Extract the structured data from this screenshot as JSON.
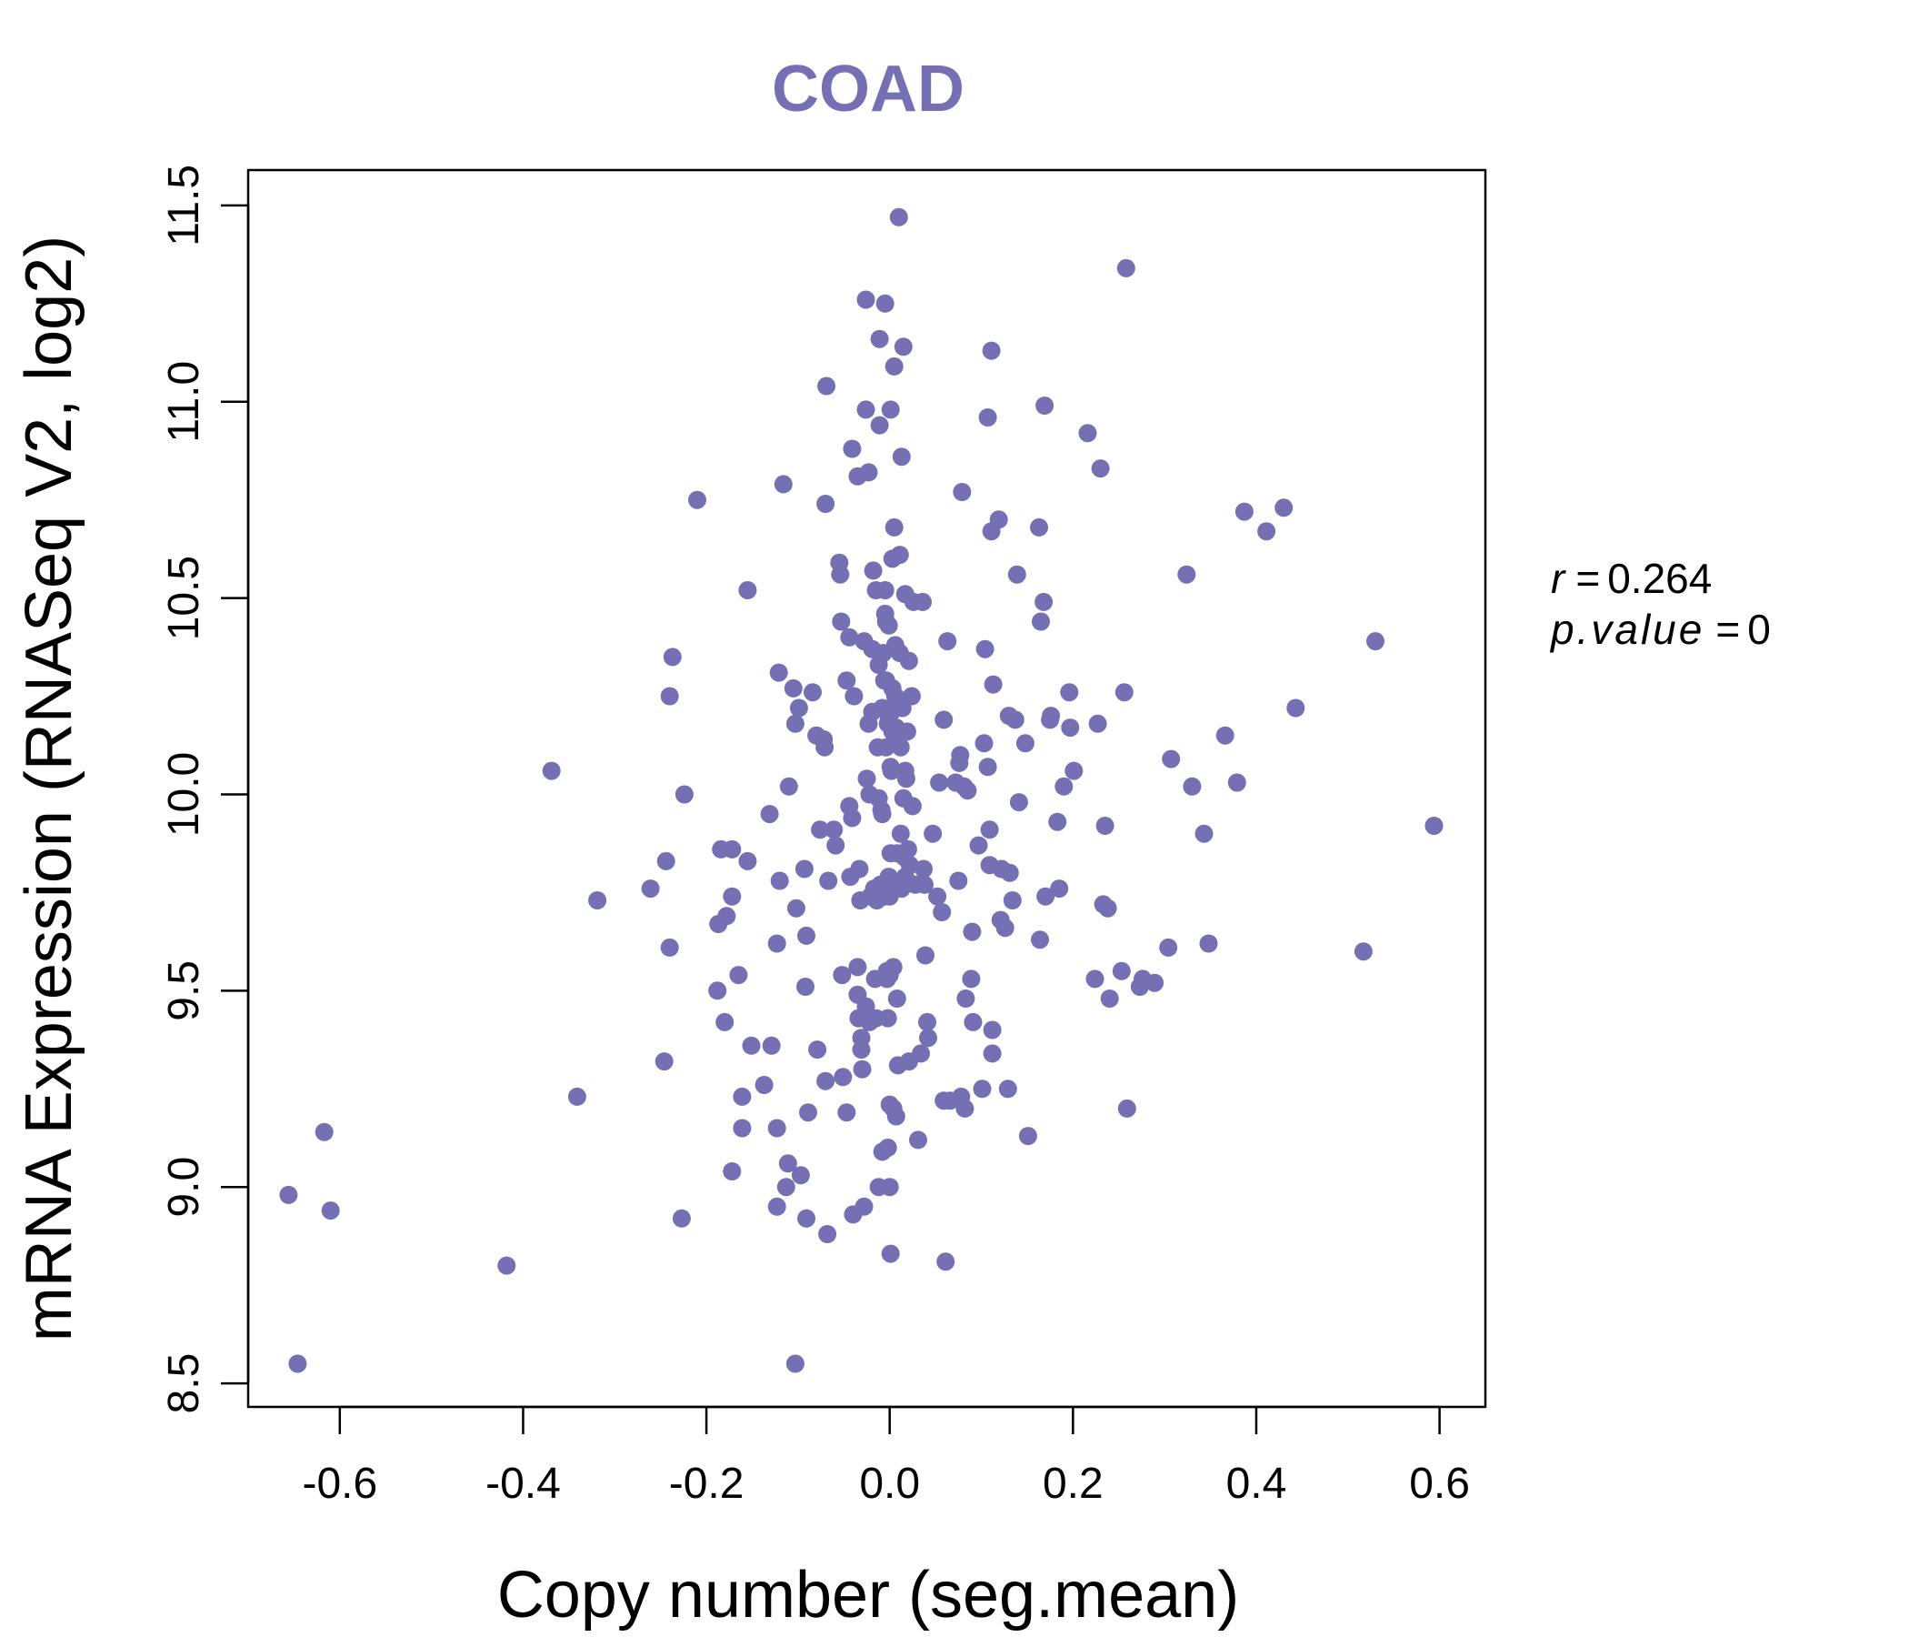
{
  "chart_data": {
    "type": "scatter",
    "title": "COAD",
    "xlabel": "Copy number (seg.mean)",
    "ylabel": "mRNA Expression (RNASeq V2, log2)",
    "xlim": [
      -0.7,
      0.65
    ],
    "ylim": [
      8.44,
      11.59
    ],
    "x_ticks": [
      -0.6,
      -0.4,
      -0.2,
      0.0,
      0.2,
      0.4,
      0.6
    ],
    "x_tick_labels": [
      "-0.6",
      "-0.4",
      "-0.2",
      "0.0",
      "0.2",
      "0.4",
      "0.6"
    ],
    "y_ticks": [
      8.5,
      9.0,
      9.5,
      10.0,
      10.5,
      11.0,
      11.5
    ],
    "y_tick_labels": [
      "8.5",
      "9.0",
      "9.5",
      "10.0",
      "10.5",
      "11.0",
      "11.5"
    ],
    "grid": false,
    "point_color": "#7570b3",
    "annotations": {
      "r_label": "r",
      "r_value": "0.264",
      "p_label": "p.value",
      "p_value": "0"
    },
    "points": [
      [
        -0.656,
        8.98
      ],
      [
        -0.646,
        8.55
      ],
      [
        -0.617,
        9.14
      ],
      [
        -0.61,
        8.94
      ],
      [
        -0.418,
        8.8
      ],
      [
        -0.369,
        10.06
      ],
      [
        -0.341,
        9.23
      ],
      [
        -0.319,
        9.73
      ],
      [
        -0.261,
        9.76
      ],
      [
        -0.244,
        9.83
      ],
      [
        -0.24,
        9.61
      ],
      [
        -0.24,
        10.25
      ],
      [
        -0.237,
        10.35
      ],
      [
        -0.246,
        9.32
      ],
      [
        -0.227,
        8.92
      ],
      [
        -0.224,
        10.0
      ],
      [
        -0.21,
        10.75
      ],
      [
        -0.188,
        9.5
      ],
      [
        -0.187,
        9.67
      ],
      [
        -0.184,
        9.86
      ],
      [
        -0.18,
        9.42
      ],
      [
        -0.178,
        9.69
      ],
      [
        -0.172,
        9.86
      ],
      [
        -0.172,
        9.74
      ],
      [
        -0.172,
        9.04
      ],
      [
        -0.165,
        9.54
      ],
      [
        -0.161,
        9.23
      ],
      [
        -0.161,
        9.15
      ],
      [
        -0.155,
        10.52
      ],
      [
        -0.155,
        9.83
      ],
      [
        -0.151,
        9.36
      ],
      [
        -0.137,
        9.26
      ],
      [
        -0.131,
        9.95
      ],
      [
        -0.129,
        9.36
      ],
      [
        -0.123,
        9.62
      ],
      [
        -0.123,
        9.15
      ],
      [
        -0.123,
        8.95
      ],
      [
        -0.121,
        10.31
      ],
      [
        -0.12,
        9.78
      ],
      [
        -0.116,
        10.79
      ],
      [
        -0.113,
        9.0
      ],
      [
        -0.111,
        9.06
      ],
      [
        -0.11,
        10.02
      ],
      [
        -0.105,
        10.27
      ],
      [
        -0.103,
        10.18
      ],
      [
        -0.102,
        9.71
      ],
      [
        -0.103,
        8.55
      ],
      [
        -0.099,
        10.22
      ],
      [
        -0.097,
        9.03
      ],
      [
        -0.093,
        9.81
      ],
      [
        -0.091,
        9.64
      ],
      [
        -0.092,
        9.51
      ],
      [
        -0.091,
        8.92
      ],
      [
        -0.089,
        9.19
      ],
      [
        -0.084,
        10.26
      ],
      [
        -0.08,
        10.15
      ],
      [
        -0.079,
        9.35
      ],
      [
        -0.076,
        9.91
      ],
      [
        -0.072,
        10.14
      ],
      [
        -0.071,
        10.12
      ],
      [
        -0.07,
        10.74
      ],
      [
        -0.07,
        9.27
      ],
      [
        -0.069,
        11.04
      ],
      [
        -0.068,
        8.88
      ],
      [
        -0.067,
        9.78
      ],
      [
        -0.061,
        9.91
      ],
      [
        -0.059,
        9.87
      ],
      [
        -0.055,
        10.59
      ],
      [
        -0.054,
        10.56
      ],
      [
        -0.053,
        10.44
      ],
      [
        -0.052,
        9.54
      ],
      [
        -0.051,
        9.28
      ],
      [
        -0.047,
        10.29
      ],
      [
        -0.047,
        9.19
      ],
      [
        -0.044,
        10.4
      ],
      [
        -0.044,
        9.97
      ],
      [
        -0.043,
        9.79
      ],
      [
        -0.041,
        10.88
      ],
      [
        -0.041,
        9.94
      ],
      [
        -0.04,
        8.93
      ],
      [
        -0.039,
        10.25
      ],
      [
        -0.035,
        10.81
      ],
      [
        -0.035,
        9.49
      ],
      [
        -0.035,
        9.56
      ],
      [
        -0.034,
        9.43
      ],
      [
        -0.033,
        9.81
      ],
      [
        -0.032,
        9.73
      ],
      [
        -0.031,
        9.38
      ],
      [
        -0.031,
        9.35
      ],
      [
        -0.03,
        9.3
      ],
      [
        -0.028,
        10.39
      ],
      [
        -0.028,
        8.95
      ],
      [
        -0.026,
        11.26
      ],
      [
        -0.026,
        10.98
      ],
      [
        -0.026,
        9.46
      ],
      [
        -0.025,
        10.04
      ],
      [
        -0.023,
        10.82
      ],
      [
        -0.023,
        10.18
      ],
      [
        -0.022,
        9.42
      ],
      [
        -0.022,
        10.0
      ],
      [
        -0.021,
        9.74
      ],
      [
        -0.019,
        10.37
      ],
      [
        -0.019,
        10.21
      ],
      [
        -0.018,
        10.57
      ],
      [
        -0.017,
        9.76
      ],
      [
        -0.016,
        9.53
      ],
      [
        -0.015,
        10.52
      ],
      [
        -0.015,
        9.43
      ],
      [
        -0.014,
        9.76
      ],
      [
        -0.014,
        9.73
      ],
      [
        -0.013,
        10.12
      ],
      [
        -0.012,
        10.33
      ],
      [
        -0.012,
        9.99
      ],
      [
        -0.012,
        9.0
      ],
      [
        -0.011,
        11.16
      ],
      [
        -0.011,
        10.94
      ],
      [
        -0.01,
        9.77
      ],
      [
        -0.009,
        9.96
      ],
      [
        -0.009,
        9.77
      ],
      [
        -0.008,
        10.22
      ],
      [
        -0.008,
        9.95
      ],
      [
        -0.008,
        9.09
      ],
      [
        -0.007,
        10.36
      ],
      [
        -0.006,
        10.29
      ],
      [
        -0.006,
        9.74
      ],
      [
        -0.005,
        11.25
      ],
      [
        -0.005,
        10.52
      ],
      [
        -0.005,
        10.46
      ],
      [
        -0.004,
        10.44
      ],
      [
        -0.004,
        10.29
      ],
      [
        -0.004,
        10.12
      ],
      [
        -0.004,
        9.76
      ],
      [
        -0.003,
        9.55
      ],
      [
        -0.003,
        9.53
      ],
      [
        -0.002,
        10.18
      ],
      [
        -0.002,
        9.43
      ],
      [
        -0.002,
        9.1
      ],
      [
        -0.001,
        10.43
      ],
      [
        -0.001,
        10.19
      ],
      [
        -0.001,
        9.79
      ],
      [
        0.0,
        9.74
      ],
      [
        0.0,
        9.54
      ],
      [
        0.0,
        9.21
      ],
      [
        0.0,
        9.0
      ],
      [
        0.001,
        10.98
      ],
      [
        0.001,
        10.07
      ],
      [
        0.001,
        9.85
      ],
      [
        0.001,
        8.83
      ],
      [
        0.002,
        10.21
      ],
      [
        0.002,
        10.06
      ],
      [
        0.003,
        10.6
      ],
      [
        0.003,
        10.27
      ],
      [
        0.003,
        10.16
      ],
      [
        0.003,
        9.77
      ],
      [
        0.004,
        9.56
      ],
      [
        0.004,
        9.2
      ],
      [
        0.005,
        11.09
      ],
      [
        0.005,
        10.68
      ],
      [
        0.006,
        10.38
      ],
      [
        0.006,
        10.25
      ],
      [
        0.006,
        10.23
      ],
      [
        0.007,
        10.17
      ],
      [
        0.007,
        9.18
      ],
      [
        0.008,
        9.85
      ],
      [
        0.008,
        9.48
      ],
      [
        0.009,
        10.15
      ],
      [
        0.009,
        9.77
      ],
      [
        0.009,
        9.31
      ],
      [
        0.01,
        11.47
      ],
      [
        0.011,
        10.61
      ],
      [
        0.011,
        10.36
      ],
      [
        0.012,
        10.12
      ],
      [
        0.012,
        9.9
      ],
      [
        0.013,
        10.86
      ],
      [
        0.013,
        9.76
      ],
      [
        0.014,
        10.22
      ],
      [
        0.015,
        11.14
      ],
      [
        0.015,
        9.99
      ],
      [
        0.016,
        9.84
      ],
      [
        0.017,
        10.51
      ],
      [
        0.017,
        10.06
      ],
      [
        0.017,
        9.79
      ],
      [
        0.018,
        10.04
      ],
      [
        0.019,
        10.16
      ],
      [
        0.02,
        9.86
      ],
      [
        0.021,
        10.34
      ],
      [
        0.021,
        9.32
      ],
      [
        0.022,
        9.82
      ],
      [
        0.024,
        10.25
      ],
      [
        0.025,
        9.97
      ],
      [
        0.026,
        10.49
      ],
      [
        0.028,
        9.77
      ],
      [
        0.031,
        9.12
      ],
      [
        0.034,
        9.34
      ],
      [
        0.036,
        10.49
      ],
      [
        0.037,
        9.81
      ],
      [
        0.038,
        9.77
      ],
      [
        0.039,
        9.59
      ],
      [
        0.041,
        9.42
      ],
      [
        0.042,
        9.38
      ],
      [
        0.047,
        9.9
      ],
      [
        0.052,
        9.74
      ],
      [
        0.054,
        10.03
      ],
      [
        0.057,
        9.7
      ],
      [
        0.059,
        10.19
      ],
      [
        0.059,
        9.22
      ],
      [
        0.061,
        8.81
      ],
      [
        0.063,
        10.39
      ],
      [
        0.066,
        9.22
      ],
      [
        0.072,
        10.03
      ],
      [
        0.075,
        9.78
      ],
      [
        0.076,
        10.08
      ],
      [
        0.077,
        10.1
      ],
      [
        0.078,
        9.23
      ],
      [
        0.079,
        10.77
      ],
      [
        0.081,
        10.02
      ],
      [
        0.082,
        9.2
      ],
      [
        0.083,
        9.48
      ],
      [
        0.085,
        10.01
      ],
      [
        0.089,
        9.53
      ],
      [
        0.09,
        9.65
      ],
      [
        0.091,
        9.42
      ],
      [
        0.097,
        9.87
      ],
      [
        0.101,
        9.25
      ],
      [
        0.103,
        10.13
      ],
      [
        0.104,
        10.37
      ],
      [
        0.107,
        10.07
      ],
      [
        0.107,
        10.96
      ],
      [
        0.109,
        9.91
      ],
      [
        0.109,
        9.82
      ],
      [
        0.111,
        11.13
      ],
      [
        0.111,
        10.67
      ],
      [
        0.112,
        9.4
      ],
      [
        0.112,
        9.34
      ],
      [
        0.113,
        10.28
      ],
      [
        0.119,
        10.7
      ],
      [
        0.121,
        9.68
      ],
      [
        0.122,
        9.81
      ],
      [
        0.126,
        9.66
      ],
      [
        0.129,
        9.25
      ],
      [
        0.13,
        10.2
      ],
      [
        0.131,
        9.8
      ],
      [
        0.134,
        9.73
      ],
      [
        0.137,
        10.19
      ],
      [
        0.139,
        10.56
      ],
      [
        0.141,
        9.98
      ],
      [
        0.148,
        10.13
      ],
      [
        0.151,
        9.13
      ],
      [
        0.163,
        10.68
      ],
      [
        0.164,
        9.63
      ],
      [
        0.165,
        10.44
      ],
      [
        0.168,
        10.49
      ],
      [
        0.169,
        10.99
      ],
      [
        0.17,
        9.74
      ],
      [
        0.175,
        10.19
      ],
      [
        0.176,
        10.2
      ],
      [
        0.183,
        9.93
      ],
      [
        0.185,
        9.76
      ],
      [
        0.19,
        10.02
      ],
      [
        0.196,
        10.26
      ],
      [
        0.197,
        10.17
      ],
      [
        0.201,
        10.06
      ],
      [
        0.216,
        10.92
      ],
      [
        0.224,
        9.53
      ],
      [
        0.227,
        10.18
      ],
      [
        0.23,
        10.83
      ],
      [
        0.233,
        9.72
      ],
      [
        0.235,
        9.92
      ],
      [
        0.238,
        9.71
      ],
      [
        0.24,
        9.48
      ],
      [
        0.253,
        9.55
      ],
      [
        0.256,
        10.26
      ],
      [
        0.258,
        11.34
      ],
      [
        0.259,
        9.2
      ],
      [
        0.273,
        9.51
      ],
      [
        0.276,
        9.53
      ],
      [
        0.289,
        9.52
      ],
      [
        0.304,
        9.61
      ],
      [
        0.307,
        10.09
      ],
      [
        0.324,
        10.56
      ],
      [
        0.33,
        10.02
      ],
      [
        0.343,
        9.9
      ],
      [
        0.348,
        9.62
      ],
      [
        0.366,
        10.15
      ],
      [
        0.379,
        10.03
      ],
      [
        0.387,
        10.72
      ],
      [
        0.411,
        10.67
      ],
      [
        0.43,
        10.73
      ],
      [
        0.443,
        10.22
      ],
      [
        0.517,
        9.6
      ],
      [
        0.53,
        10.39
      ],
      [
        0.594,
        9.92
      ]
    ]
  }
}
